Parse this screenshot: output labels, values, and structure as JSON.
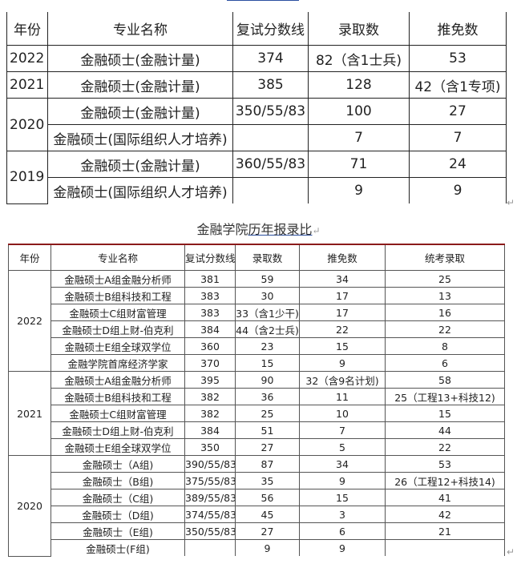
{
  "table1": {
    "headers": [
      "年份",
      "专业名称",
      "复试分数线",
      "录取数",
      "推免数"
    ],
    "groups": [
      {
        "year": "2022",
        "rows": [
          [
            "金融硕士(金融计量)",
            "374",
            "82（含1士兵)",
            "53"
          ]
        ]
      },
      {
        "year": "2021",
        "rows": [
          [
            "金融硕士(金融计量)",
            "385",
            "128",
            "42（含1专项)"
          ]
        ]
      },
      {
        "year": "2020",
        "rows": [
          [
            "金融硕士(金融计量)",
            "350/55/83",
            "100",
            "27"
          ],
          [
            "金融硕士(国际组织人才培养)",
            "",
            "7",
            "7"
          ]
        ]
      },
      {
        "year": "2019",
        "rows": [
          [
            "金融硕士(金融计量)",
            "360/55/83",
            "71",
            "24"
          ],
          [
            "金融硕士(国际组织人才培养)",
            "",
            "9",
            "9"
          ]
        ]
      }
    ]
  },
  "caption": {
    "prefix": "金融学院",
    "link": "历年报录比"
  },
  "table2": {
    "headers": [
      "年份",
      "专业名称",
      "复试分数线",
      "录取数",
      "推免数",
      "统考录取"
    ],
    "groups": [
      {
        "year": "2022",
        "rows": [
          [
            "金融硕士A组金融分析师",
            "381",
            "59",
            "34",
            "25"
          ],
          [
            "金融硕士B组科技和工程",
            "383",
            "30",
            "17",
            "13"
          ],
          [
            "金融硕士C组财富管理",
            "383",
            "33（含1少干)",
            "17",
            "16"
          ],
          [
            "金融硕士D组上财-伯克利",
            "384",
            "44（含2士兵)",
            "22",
            "22"
          ],
          [
            "金融硕士E组全球双学位",
            "360",
            "23",
            "15",
            "8"
          ],
          [
            "金融学院首席经济学家",
            "370",
            "15",
            "9",
            "6"
          ]
        ]
      },
      {
        "year": "2021",
        "rows": [
          [
            "金融硕士A组金融分析师",
            "395",
            "90",
            "32（含9名计划)",
            "58"
          ],
          [
            "金融硕士B组科技和工程",
            "382",
            "36",
            "11",
            "25（工程13+科技12)"
          ],
          [
            "金融硕士C组财富管理",
            "382",
            "25",
            "10",
            "15"
          ],
          [
            "金融硕士D组上财-伯克利",
            "384",
            "51",
            "7",
            "44"
          ],
          [
            "金融硕士E组全球双学位",
            "350",
            "27",
            "5",
            "22"
          ]
        ]
      },
      {
        "year": "2020",
        "rows": [
          [
            "金融硕士（A组)",
            "390/55/83",
            "87",
            "34",
            "53"
          ],
          [
            "金融硕士（B组)",
            "375/55/83",
            "35",
            "9",
            "26（工程12+科技14)"
          ],
          [
            "金融硕士（C组)",
            "389/55/83",
            "56",
            "15",
            "41"
          ],
          [
            "金融硕士（D组)",
            "374/55/83",
            "45",
            "3",
            "42"
          ],
          [
            "金融硕士（E组)",
            "350/55/83",
            "27",
            "6",
            "21"
          ],
          [
            "金融硕士(F组)",
            "",
            "9",
            "9",
            ""
          ]
        ]
      }
    ]
  },
  "colors": {
    "header_rule": "#8b1a1a",
    "link_underline": "#2a4fa0"
  }
}
